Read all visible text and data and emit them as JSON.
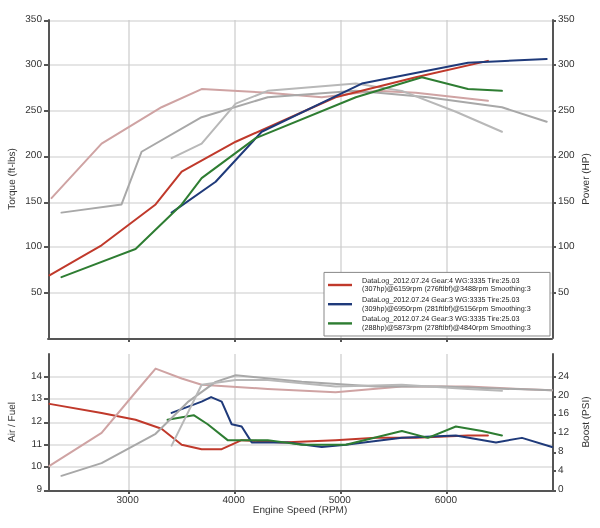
{
  "chart_data": [
    {
      "type": "line",
      "ylabel": "Torque (ft-lbs)",
      "y2label": "Power (HP)",
      "xlim": [
        2250,
        7000
      ],
      "xticks": [
        3000,
        4000,
        5000,
        6000
      ],
      "ylim": [
        0,
        350
      ],
      "yticks": [
        50,
        100,
        150,
        200,
        250,
        300,
        350
      ],
      "y2lim": [
        0,
        350
      ],
      "y2ticks": [
        50,
        100,
        150,
        200,
        250,
        300,
        350
      ],
      "tick_labels": "y",
      "grid": true,
      "legend": "bottom right",
      "marker": "none",
      "line_style": "solid",
      "series": [
        {
          "name": "DataLog_2012.07.24 Gear:4 WG:3335 Tire:25.03 (307hp)@6159rpm (276ftlbf)@3488rpm Smoothing:3",
          "color": "#c0392b",
          "axis": "y2",
          "x": [
            2264,
            2755,
            3264,
            3510,
            4019,
            4960,
            5717,
            6396
          ],
          "values": [
            69,
            102,
            147,
            183,
            216,
            265,
            287,
            305
          ]
        },
        {
          "name": "DataLog_2012.07.24 Gear:3 WG:3335 Tire:25.03 (309hp)@6950rpm (281ftlbf)@5156rpm Smoothing:3",
          "color": "#1f3a7a",
          "axis": "y2",
          "x": [
            3415,
            3830,
            4264,
            5208,
            6208,
            6950
          ],
          "values": [
            138,
            172,
            227,
            280,
            303,
            307
          ]
        },
        {
          "name": "DataLog_2012.07.24 Gear:3 WG:3335 Tire:25.03 (288hp)@5873rpm (278ftlbf)@4840rpm Smoothing:3",
          "color": "#2e7d32",
          "axis": "y2",
          "x": [
            2377,
            3075,
            3510,
            3698,
            4208,
            5151,
            5774,
            6208,
            6528
          ],
          "values": [
            67,
            98,
            147,
            176,
            220,
            265,
            287,
            274,
            272
          ]
        },
        {
          "color": "#cfa3a3",
          "x": [
            2283,
            2755,
            3320,
            3698,
            4321,
            4830,
            5340,
            5717,
            6396
          ],
          "values": [
            154,
            214,
            254,
            274,
            270,
            265,
            272,
            270,
            261
          ]
        },
        {
          "color": "#a8a8a8",
          "x": [
            2377,
            2943,
            3132,
            3698,
            4321,
            5151,
            5830,
            6528,
            6950
          ],
          "values": [
            138,
            147,
            205,
            243,
            265,
            272,
            265,
            254,
            238
          ]
        },
        {
          "color": "#b8b8b8",
          "x": [
            3415,
            3698,
            4019,
            4321,
            5151,
            5585,
            6094,
            6528
          ],
          "values": [
            198,
            214,
            258,
            272,
            280,
            272,
            249,
            227
          ]
        }
      ]
    },
    {
      "type": "line",
      "xlabel": "Engine Speed (RPM)",
      "ylabel": "Air / Fuel",
      "y2label": "Boost (PSI)",
      "xlim": [
        2250,
        7000
      ],
      "xticks": [
        3000,
        4000,
        5000,
        6000
      ],
      "ylim": [
        9,
        15
      ],
      "yticks": [
        9,
        10,
        11,
        12,
        13,
        14
      ],
      "y2lim": [
        0,
        28.8
      ],
      "y2ticks": [
        0,
        4,
        8,
        12,
        16,
        20,
        24
      ],
      "grid": true,
      "marker": "none",
      "line_style": "solid",
      "series": [
        {
          "color": "#c0392b",
          "x": [
            2264,
            2755,
            3075,
            3320,
            3510,
            3698,
            3887,
            4075,
            4453,
            4960,
            5340,
            5717,
            6208,
            6396
          ],
          "values": [
            12.8,
            12.4,
            12.1,
            11.7,
            11.0,
            10.8,
            10.8,
            11.2,
            11.1,
            11.2,
            11.3,
            11.3,
            11.4,
            11.4
          ]
        },
        {
          "color": "#1f3a7a",
          "x": [
            3415,
            3698,
            3787,
            3887,
            3981,
            4075,
            4170,
            4509,
            4830,
            5057,
            5585,
            6094,
            6472,
            6717,
            7000
          ],
          "values": [
            12.4,
            12.9,
            13.1,
            12.9,
            11.9,
            11.8,
            11.1,
            11.1,
            10.9,
            11.0,
            11.3,
            11.4,
            11.1,
            11.3,
            10.9
          ]
        },
        {
          "color": "#2e7d32",
          "x": [
            3377,
            3623,
            3755,
            3943,
            4321,
            4642,
            5057,
            5585,
            5830,
            6094,
            6340,
            6528
          ],
          "values": [
            12.1,
            12.3,
            11.9,
            11.2,
            11.2,
            11.0,
            11.0,
            11.6,
            11.3,
            11.8,
            11.6,
            11.4
          ]
        },
        {
          "color": "#cfa3a3",
          "axis": "y2",
          "x": [
            2264,
            2755,
            3075,
            3264,
            3510,
            3698,
            4321,
            4960,
            5585,
            6208,
            7000
          ],
          "values": [
            5.1,
            12.1,
            20.7,
            25.7,
            23.6,
            22.3,
            21.4,
            20.7,
            21.9,
            21.9,
            21.1
          ]
        },
        {
          "color": "#a8a8a8",
          "axis": "y2",
          "x": [
            2377,
            2755,
            3264,
            3566,
            3830,
            4019,
            4642,
            5340,
            5962,
            7000
          ],
          "values": [
            3.0,
            5.7,
            11.9,
            18.6,
            22.9,
            24.3,
            22.9,
            21.9,
            21.9,
            21.1
          ]
        },
        {
          "color": "#b8b8b8",
          "axis": "y2",
          "x": [
            3415,
            3698,
            4019,
            4321,
            4960,
            5585,
            6208,
            6528
          ],
          "values": [
            9.4,
            22.3,
            23.3,
            23.3,
            21.9,
            22.3,
            21.4,
            21.0
          ]
        }
      ]
    }
  ]
}
